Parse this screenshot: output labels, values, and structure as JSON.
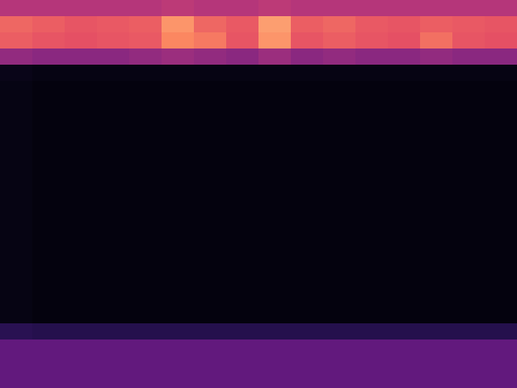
{
  "chart_data": {
    "type": "heatmap",
    "tick_labels": false,
    "zlim": [
      0,
      1
    ],
    "cells": [
      [
        0.5,
        0.5,
        0.5,
        0.5,
        0.5,
        0.52,
        0.5,
        0.5,
        0.52,
        0.5,
        0.5,
        0.5,
        0.5,
        0.5,
        0.5,
        0.5
      ],
      [
        0.68,
        0.66,
        0.64,
        0.65,
        0.66,
        0.78,
        0.68,
        0.65,
        0.8,
        0.66,
        0.68,
        0.65,
        0.64,
        0.66,
        0.65,
        0.64
      ],
      [
        0.66,
        0.64,
        0.63,
        0.64,
        0.65,
        0.75,
        0.72,
        0.64,
        0.78,
        0.64,
        0.66,
        0.64,
        0.63,
        0.7,
        0.64,
        0.63
      ],
      [
        0.42,
        0.4,
        0.4,
        0.4,
        0.42,
        0.44,
        0.42,
        0.4,
        0.44,
        0.4,
        0.42,
        0.4,
        0.4,
        0.42,
        0.4,
        0.4
      ],
      [
        0.04,
        0.03,
        0.03,
        0.03,
        0.03,
        0.03,
        0.03,
        0.03,
        0.03,
        0.03,
        0.03,
        0.03,
        0.03,
        0.03,
        0.03,
        0.03
      ],
      [
        0.03,
        0.02,
        0.02,
        0.02,
        0.02,
        0.02,
        0.02,
        0.02,
        0.02,
        0.02,
        0.02,
        0.02,
        0.02,
        0.02,
        0.02,
        0.02
      ],
      [
        0.03,
        0.02,
        0.02,
        0.02,
        0.02,
        0.02,
        0.02,
        0.02,
        0.02,
        0.02,
        0.02,
        0.02,
        0.02,
        0.02,
        0.02,
        0.02
      ],
      [
        0.03,
        0.02,
        0.02,
        0.02,
        0.02,
        0.02,
        0.02,
        0.02,
        0.02,
        0.02,
        0.02,
        0.02,
        0.02,
        0.02,
        0.02,
        0.02
      ],
      [
        0.03,
        0.02,
        0.02,
        0.02,
        0.02,
        0.02,
        0.02,
        0.02,
        0.02,
        0.02,
        0.02,
        0.02,
        0.02,
        0.02,
        0.02,
        0.02
      ],
      [
        0.03,
        0.02,
        0.02,
        0.02,
        0.02,
        0.02,
        0.02,
        0.02,
        0.02,
        0.02,
        0.02,
        0.02,
        0.02,
        0.02,
        0.02,
        0.02
      ],
      [
        0.03,
        0.02,
        0.02,
        0.02,
        0.02,
        0.02,
        0.02,
        0.02,
        0.02,
        0.02,
        0.02,
        0.02,
        0.02,
        0.02,
        0.02,
        0.02
      ],
      [
        0.03,
        0.02,
        0.02,
        0.02,
        0.02,
        0.02,
        0.02,
        0.02,
        0.02,
        0.02,
        0.02,
        0.02,
        0.02,
        0.02,
        0.02,
        0.02
      ],
      [
        0.03,
        0.02,
        0.02,
        0.02,
        0.02,
        0.02,
        0.02,
        0.02,
        0.02,
        0.02,
        0.02,
        0.02,
        0.02,
        0.02,
        0.02,
        0.02
      ],
      [
        0.03,
        0.02,
        0.02,
        0.02,
        0.02,
        0.02,
        0.02,
        0.02,
        0.02,
        0.02,
        0.02,
        0.02,
        0.02,
        0.02,
        0.02,
        0.02
      ],
      [
        0.03,
        0.02,
        0.02,
        0.02,
        0.02,
        0.02,
        0.02,
        0.02,
        0.02,
        0.02,
        0.02,
        0.02,
        0.02,
        0.02,
        0.02,
        0.02
      ],
      [
        0.03,
        0.02,
        0.02,
        0.02,
        0.02,
        0.02,
        0.02,
        0.02,
        0.02,
        0.02,
        0.02,
        0.02,
        0.02,
        0.02,
        0.02,
        0.02
      ],
      [
        0.03,
        0.02,
        0.02,
        0.02,
        0.02,
        0.02,
        0.02,
        0.02,
        0.02,
        0.02,
        0.02,
        0.02,
        0.02,
        0.02,
        0.02,
        0.02
      ],
      [
        0.03,
        0.02,
        0.02,
        0.02,
        0.02,
        0.02,
        0.02,
        0.02,
        0.02,
        0.02,
        0.02,
        0.02,
        0.02,
        0.02,
        0.02,
        0.02
      ],
      [
        0.03,
        0.02,
        0.02,
        0.02,
        0.02,
        0.02,
        0.02,
        0.02,
        0.02,
        0.02,
        0.02,
        0.02,
        0.02,
        0.02,
        0.02,
        0.02
      ],
      [
        0.03,
        0.02,
        0.02,
        0.02,
        0.02,
        0.02,
        0.02,
        0.02,
        0.02,
        0.02,
        0.02,
        0.02,
        0.02,
        0.02,
        0.02,
        0.02
      ],
      [
        0.16,
        0.15,
        0.15,
        0.15,
        0.15,
        0.15,
        0.15,
        0.15,
        0.15,
        0.15,
        0.15,
        0.15,
        0.15,
        0.15,
        0.15,
        0.15
      ],
      [
        0.3,
        0.3,
        0.3,
        0.3,
        0.3,
        0.3,
        0.3,
        0.3,
        0.3,
        0.3,
        0.3,
        0.3,
        0.3,
        0.3,
        0.3,
        0.3
      ],
      [
        0.3,
        0.3,
        0.3,
        0.3,
        0.3,
        0.3,
        0.3,
        0.3,
        0.3,
        0.3,
        0.3,
        0.3,
        0.3,
        0.3,
        0.3,
        0.3
      ],
      [
        0.3,
        0.3,
        0.3,
        0.3,
        0.3,
        0.3,
        0.3,
        0.3,
        0.3,
        0.3,
        0.3,
        0.3,
        0.3,
        0.3,
        0.3,
        0.3
      ]
    ]
  }
}
